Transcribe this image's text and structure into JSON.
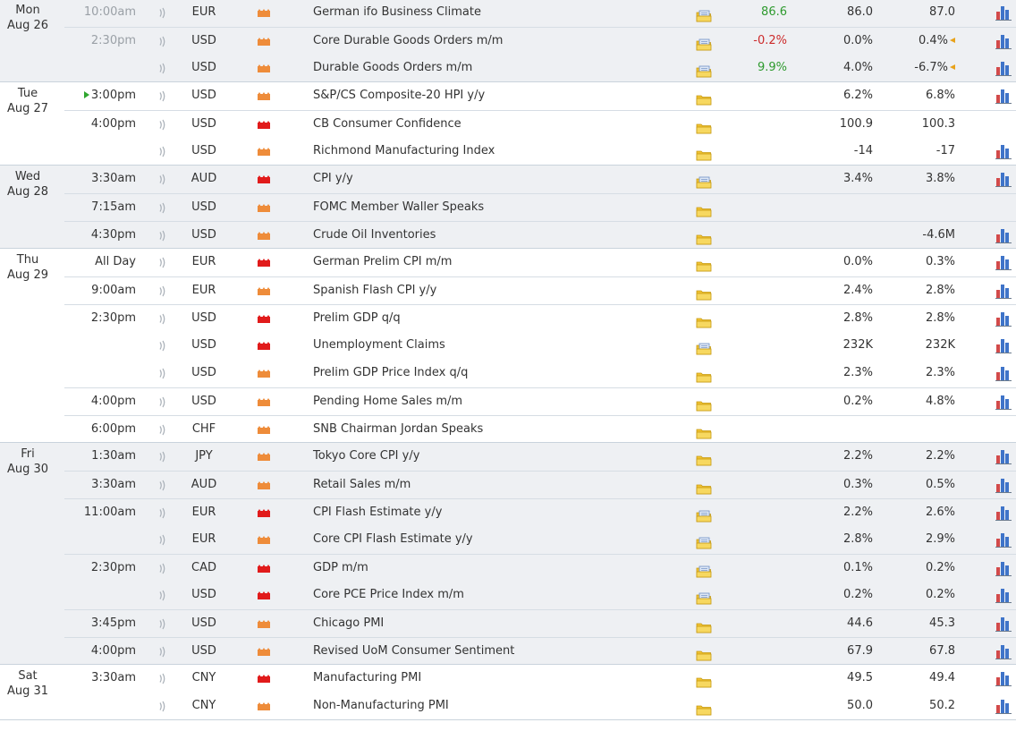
{
  "colors": {
    "importance_medium": "#ee8c3a",
    "importance_high": "#e11b1b",
    "positive": "#2e9a2e",
    "negative": "#cc2a2a",
    "revised_marker": "#e8a21a"
  },
  "icons": {
    "alarm": "alarm-icon",
    "importance": "importance-icon",
    "folder": "folder-icon",
    "chart": "chart-icon",
    "revised": "revised-marker-icon"
  },
  "days": [
    {
      "dow": "Mon",
      "date": "Aug 26",
      "events": [
        {
          "time": "10:00am",
          "time_style": "past",
          "currency": "EUR",
          "importance": "medium",
          "name": "German ifo Business Climate",
          "folder": "doc",
          "actual": "86.6",
          "actual_color": "green",
          "forecast": "86.0",
          "previous": "87.0",
          "revised": false,
          "graph": true,
          "sep": false
        },
        {
          "time": "2:30pm",
          "time_style": "past",
          "currency": "USD",
          "importance": "medium",
          "name": "Core Durable Goods Orders m/m",
          "folder": "doc",
          "actual": "-0.2%",
          "actual_color": "red",
          "forecast": "0.0%",
          "previous": "0.4%",
          "revised": true,
          "graph": true,
          "sep": true
        },
        {
          "time": "",
          "currency": "USD",
          "importance": "medium",
          "name": "Durable Goods Orders m/m",
          "folder": "doc",
          "actual": "9.9%",
          "actual_color": "green",
          "forecast": "4.0%",
          "previous": "-6.7%",
          "revised": true,
          "graph": true,
          "sep": false
        }
      ]
    },
    {
      "dow": "Tue",
      "date": "Aug 27",
      "events": [
        {
          "time": "3:00pm",
          "time_style": "current",
          "currency": "USD",
          "importance": "medium",
          "name": "S&P/CS Composite-20 HPI y/y",
          "folder": "plain",
          "actual": "",
          "forecast": "6.2%",
          "previous": "6.8%",
          "revised": false,
          "graph": true,
          "sep": false
        },
        {
          "time": "4:00pm",
          "currency": "USD",
          "importance": "high",
          "name": "CB Consumer Confidence",
          "folder": "plain",
          "actual": "",
          "forecast": "100.9",
          "previous": "100.3",
          "revised": false,
          "graph": false,
          "sep": true
        },
        {
          "time": "",
          "currency": "USD",
          "importance": "medium",
          "name": "Richmond Manufacturing Index",
          "folder": "plain",
          "actual": "",
          "forecast": "-14",
          "previous": "-17",
          "revised": false,
          "graph": true,
          "sep": false
        }
      ]
    },
    {
      "dow": "Wed",
      "date": "Aug 28",
      "events": [
        {
          "time": "3:30am",
          "currency": "AUD",
          "importance": "high",
          "name": "CPI y/y",
          "folder": "doc",
          "actual": "",
          "forecast": "3.4%",
          "previous": "3.8%",
          "revised": false,
          "graph": true,
          "sep": false
        },
        {
          "time": "7:15am",
          "currency": "USD",
          "importance": "medium",
          "name": "FOMC Member Waller Speaks",
          "folder": "plain",
          "actual": "",
          "forecast": "",
          "previous": "",
          "revised": false,
          "graph": false,
          "sep": true
        },
        {
          "time": "4:30pm",
          "currency": "USD",
          "importance": "medium",
          "name": "Crude Oil Inventories",
          "folder": "plain",
          "actual": "",
          "forecast": "",
          "previous": "-4.6M",
          "revised": false,
          "graph": true,
          "sep": true
        }
      ]
    },
    {
      "dow": "Thu",
      "date": "Aug 29",
      "events": [
        {
          "time": "All Day",
          "currency": "EUR",
          "importance": "high",
          "name": "German Prelim CPI m/m",
          "folder": "plain",
          "actual": "",
          "forecast": "0.0%",
          "previous": "0.3%",
          "revised": false,
          "graph": true,
          "sep": false
        },
        {
          "time": "9:00am",
          "currency": "EUR",
          "importance": "medium",
          "name": "Spanish Flash CPI y/y",
          "folder": "plain",
          "actual": "",
          "forecast": "2.4%",
          "previous": "2.8%",
          "revised": false,
          "graph": true,
          "sep": true
        },
        {
          "time": "2:30pm",
          "currency": "USD",
          "importance": "high",
          "name": "Prelim GDP q/q",
          "folder": "plain",
          "actual": "",
          "forecast": "2.8%",
          "previous": "2.8%",
          "revised": false,
          "graph": true,
          "sep": true
        },
        {
          "time": "",
          "currency": "USD",
          "importance": "high",
          "name": "Unemployment Claims",
          "folder": "doc",
          "actual": "",
          "forecast": "232K",
          "previous": "232K",
          "revised": false,
          "graph": true,
          "sep": false
        },
        {
          "time": "",
          "currency": "USD",
          "importance": "medium",
          "name": "Prelim GDP Price Index q/q",
          "folder": "plain",
          "actual": "",
          "forecast": "2.3%",
          "previous": "2.3%",
          "revised": false,
          "graph": true,
          "sep": false
        },
        {
          "time": "4:00pm",
          "currency": "USD",
          "importance": "medium",
          "name": "Pending Home Sales m/m",
          "folder": "plain",
          "actual": "",
          "forecast": "0.2%",
          "previous": "4.8%",
          "revised": false,
          "graph": true,
          "sep": true
        },
        {
          "time": "6:00pm",
          "currency": "CHF",
          "importance": "medium",
          "name": "SNB Chairman Jordan Speaks",
          "folder": "plain",
          "actual": "",
          "forecast": "",
          "previous": "",
          "revised": false,
          "graph": false,
          "sep": true
        }
      ]
    },
    {
      "dow": "Fri",
      "date": "Aug 30",
      "events": [
        {
          "time": "1:30am",
          "currency": "JPY",
          "importance": "medium",
          "name": "Tokyo Core CPI y/y",
          "folder": "plain",
          "actual": "",
          "forecast": "2.2%",
          "previous": "2.2%",
          "revised": false,
          "graph": true,
          "sep": false
        },
        {
          "time": "3:30am",
          "currency": "AUD",
          "importance": "medium",
          "name": "Retail Sales m/m",
          "folder": "plain",
          "actual": "",
          "forecast": "0.3%",
          "previous": "0.5%",
          "revised": false,
          "graph": true,
          "sep": true
        },
        {
          "time": "11:00am",
          "currency": "EUR",
          "importance": "high",
          "name": "CPI Flash Estimate y/y",
          "folder": "doc",
          "actual": "",
          "forecast": "2.2%",
          "previous": "2.6%",
          "revised": false,
          "graph": true,
          "sep": true
        },
        {
          "time": "",
          "currency": "EUR",
          "importance": "medium",
          "name": "Core CPI Flash Estimate y/y",
          "folder": "doc",
          "actual": "",
          "forecast": "2.8%",
          "previous": "2.9%",
          "revised": false,
          "graph": true,
          "sep": false
        },
        {
          "time": "2:30pm",
          "currency": "CAD",
          "importance": "high",
          "name": "GDP m/m",
          "folder": "doc",
          "actual": "",
          "forecast": "0.1%",
          "previous": "0.2%",
          "revised": false,
          "graph": true,
          "sep": true
        },
        {
          "time": "",
          "currency": "USD",
          "importance": "high",
          "name": "Core PCE Price Index m/m",
          "folder": "doc",
          "actual": "",
          "forecast": "0.2%",
          "previous": "0.2%",
          "revised": false,
          "graph": true,
          "sep": false
        },
        {
          "time": "3:45pm",
          "currency": "USD",
          "importance": "medium",
          "name": "Chicago PMI",
          "folder": "plain",
          "actual": "",
          "forecast": "44.6",
          "previous": "45.3",
          "revised": false,
          "graph": true,
          "sep": true
        },
        {
          "time": "4:00pm",
          "currency": "USD",
          "importance": "medium",
          "name": "Revised UoM Consumer Sentiment",
          "folder": "plain",
          "actual": "",
          "forecast": "67.9",
          "previous": "67.8",
          "revised": false,
          "graph": true,
          "sep": true
        }
      ]
    },
    {
      "dow": "Sat",
      "date": "Aug 31",
      "events": [
        {
          "time": "3:30am",
          "currency": "CNY",
          "importance": "high",
          "name": "Manufacturing PMI",
          "folder": "plain",
          "actual": "",
          "forecast": "49.5",
          "previous": "49.4",
          "revised": false,
          "graph": true,
          "sep": false
        },
        {
          "time": "",
          "currency": "CNY",
          "importance": "medium",
          "name": "Non-Manufacturing PMI",
          "folder": "plain",
          "actual": "",
          "forecast": "50.0",
          "previous": "50.2",
          "revised": false,
          "graph": true,
          "sep": false
        }
      ]
    }
  ]
}
